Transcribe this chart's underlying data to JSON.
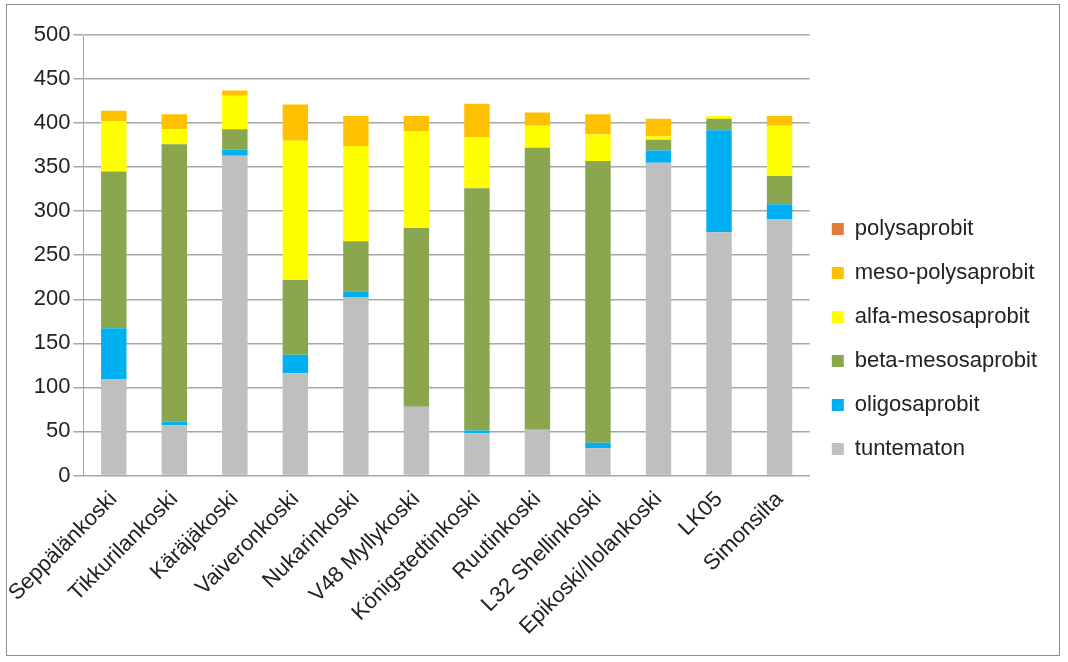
{
  "chart_data": {
    "type": "bar",
    "stacked": true,
    "categories": [
      "Seppälänkoski",
      "Tikkurilankoski",
      "Käräjäkoski",
      "Vaiveronkoski",
      "Nukarinkoski",
      "V48 Myllykoski",
      "Königstedtinkoski",
      "Ruutinkoski",
      "L32 Shellinkoski",
      "Epikoski/Ilolankoski",
      "LK05",
      "Simonsilta"
    ],
    "series": [
      {
        "name": "tuntematon",
        "color": "#bfbfbf",
        "values": [
          109,
          57,
          363,
          116,
          202,
          78,
          48,
          52,
          31,
          355,
          276,
          291
        ]
      },
      {
        "name": "oligosaprobit",
        "color": "#00b0f0",
        "values": [
          58,
          4,
          7,
          21,
          7,
          0,
          3,
          0,
          6,
          14,
          116,
          17
        ]
      },
      {
        "name": "beta-mesosaprobit",
        "color": "#8aa64e",
        "values": [
          178,
          315,
          23,
          85,
          57,
          203,
          275,
          320,
          320,
          12,
          13,
          32
        ]
      },
      {
        "name": "alfa-mesosaprobit",
        "color": "#ffff00",
        "values": [
          57,
          17,
          38,
          158,
          108,
          110,
          58,
          25,
          30,
          4,
          3,
          57
        ]
      },
      {
        "name": "meso-polysaprobit",
        "color": "#ffc000",
        "values": [
          12,
          17,
          6,
          41,
          34,
          17,
          38,
          15,
          23,
          20,
          0,
          11
        ]
      },
      {
        "name": "polysaprobit",
        "color": "#e07b39",
        "values": [
          0,
          0,
          0,
          0,
          0,
          0,
          0,
          0,
          0,
          0,
          0,
          0
        ]
      }
    ],
    "ylim": [
      0,
      500
    ],
    "yticks": [
      0,
      50,
      100,
      150,
      200,
      250,
      300,
      350,
      400,
      450,
      500
    ],
    "grid": "y",
    "legend": "right"
  }
}
